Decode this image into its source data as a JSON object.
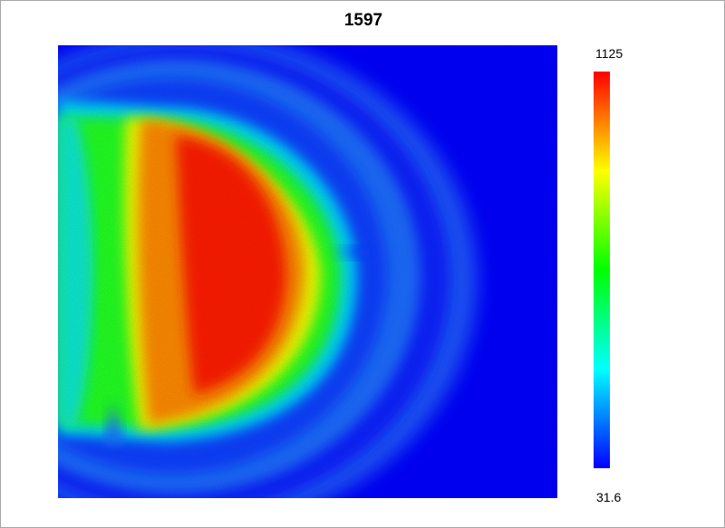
{
  "chart_data": {
    "type": "heatmap",
    "title": "1597",
    "colormap": [
      "#0000ff",
      "#00ffff",
      "#00ff00",
      "#ffff00",
      "#ff0000"
    ],
    "background_color": "#0000ff",
    "colorbar": {
      "max_label": "1125",
      "min_label": "31.6",
      "range": [
        31.6,
        1125
      ]
    }
  }
}
